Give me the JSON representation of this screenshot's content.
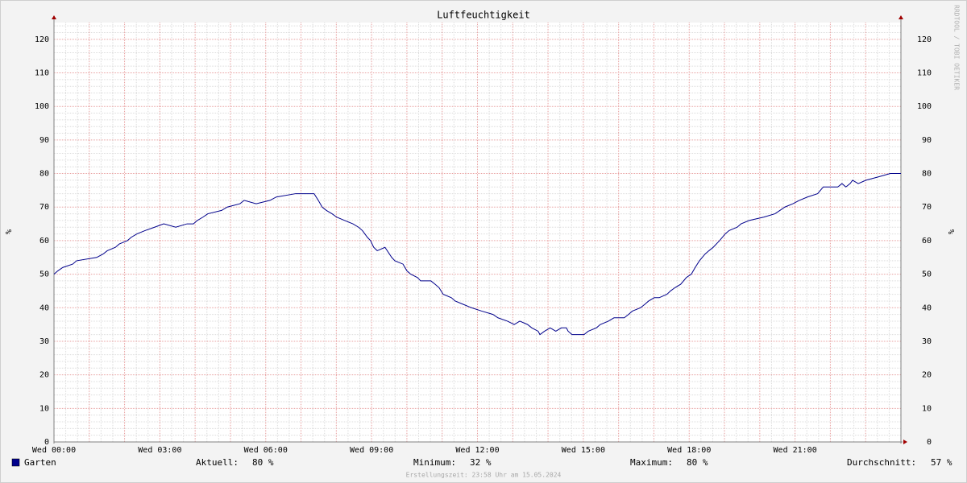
{
  "chart_data": {
    "type": "line",
    "title": "Luftfeuchtigkeit",
    "ylabel": "%",
    "watermark": "RRDTOOL / TOBI OETIKER",
    "footer": "Erstellungszeit: 23:58 Uhr am 15.05.2024",
    "xlim": [
      0,
      24
    ],
    "ylim": [
      0,
      125
    ],
    "xticks": [
      {
        "value": 0,
        "label": "Wed 00:00"
      },
      {
        "value": 3,
        "label": "Wed 03:00"
      },
      {
        "value": 6,
        "label": "Wed 06:00"
      },
      {
        "value": 9,
        "label": "Wed 09:00"
      },
      {
        "value": 12,
        "label": "Wed 12:00"
      },
      {
        "value": 15,
        "label": "Wed 15:00"
      },
      {
        "value": 18,
        "label": "Wed 18:00"
      },
      {
        "value": 21,
        "label": "Wed 21:00"
      }
    ],
    "yticks": [
      0,
      10,
      20,
      30,
      40,
      50,
      60,
      70,
      80,
      90,
      100,
      110,
      120
    ],
    "grid": true,
    "x": [
      0,
      0.11,
      0.25,
      0.53,
      0.64,
      1.21,
      1.39,
      1.51,
      1.74,
      1.85,
      2.08,
      2.19,
      2.35,
      2.58,
      2.85,
      3.11,
      3.45,
      3.77,
      3.95,
      4.06,
      4.22,
      4.36,
      4.75,
      4.91,
      5.27,
      5.39,
      5.73,
      6.12,
      6.3,
      6.85,
      7.37,
      7.49,
      7.6,
      7.72,
      7.88,
      8.01,
      8.24,
      8.47,
      8.63,
      8.74,
      8.88,
      8.97,
      9.06,
      9.16,
      9.38,
      9.57,
      9.66,
      9.89,
      10.0,
      10.11,
      10.3,
      10.39,
      10.68,
      10.8,
      10.91,
      11.03,
      11.26,
      11.37,
      11.6,
      11.83,
      12.12,
      12.44,
      12.58,
      12.85,
      13.04,
      13.2,
      13.42,
      13.54,
      13.72,
      13.77,
      13.9,
      14.06,
      14.22,
      14.38,
      14.52,
      14.57,
      14.68,
      15.02,
      15.14,
      15.37,
      15.48,
      15.71,
      15.87,
      16.16,
      16.28,
      16.39,
      16.62,
      16.74,
      16.85,
      17.01,
      17.15,
      17.37,
      17.47,
      17.6,
      17.76,
      17.92,
      18.06,
      18.17,
      18.29,
      18.45,
      18.56,
      18.68,
      18.86,
      19.02,
      19.13,
      19.36,
      19.47,
      19.7,
      20.11,
      20.43,
      20.57,
      20.71,
      20.94,
      21.12,
      21.35,
      21.64,
      21.8,
      22.21,
      22.33,
      22.44,
      22.56,
      22.63,
      22.79,
      23.01,
      23.36,
      23.7,
      24
    ],
    "series": [
      {
        "name": "Garten",
        "color": "#00008b",
        "values": [
          50,
          51,
          52,
          53,
          54,
          55,
          56,
          57,
          58,
          59,
          60,
          61,
          62,
          63,
          64,
          65,
          64,
          65,
          65,
          66,
          67,
          68,
          69,
          70,
          71,
          72,
          71,
          72,
          73,
          74,
          74,
          72,
          70,
          69,
          68,
          67,
          66,
          65,
          64,
          63,
          61,
          60,
          58,
          57,
          58,
          55,
          54,
          53,
          51,
          50,
          49,
          48,
          48,
          47,
          46,
          44,
          43,
          42,
          41,
          40,
          39,
          38,
          37,
          36,
          35,
          36,
          35,
          34,
          33,
          32,
          33,
          34,
          33,
          34,
          34,
          33,
          32,
          32,
          33,
          34,
          35,
          36,
          37,
          37,
          38,
          39,
          40,
          41,
          42,
          43,
          43,
          44,
          45,
          46,
          47,
          49,
          50,
          52,
          54,
          56,
          57,
          58,
          60,
          62,
          63,
          64,
          65,
          66,
          67,
          68,
          69,
          70,
          71,
          72,
          73,
          74,
          76,
          76,
          77,
          76,
          77,
          78,
          77,
          78,
          79,
          80,
          80
        ]
      }
    ],
    "legend_stats": [
      {
        "label": "Aktuell:",
        "value": "80 %"
      },
      {
        "label": "Minimum:",
        "value": "32 %"
      },
      {
        "label": "Maximum:",
        "value": "80 %"
      },
      {
        "label": "Durchschnitt:",
        "value": "57 %"
      }
    ]
  }
}
